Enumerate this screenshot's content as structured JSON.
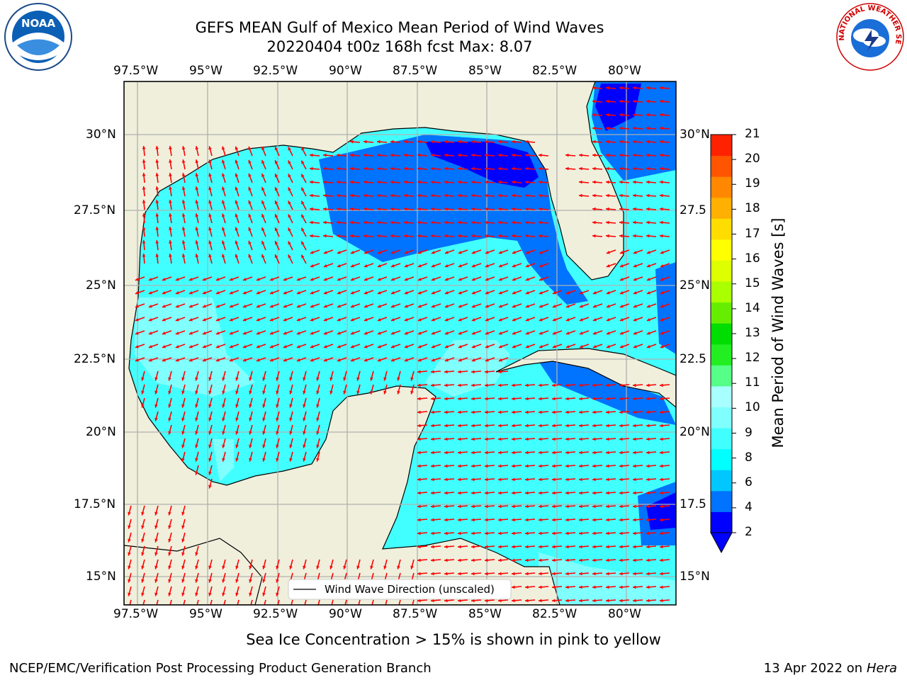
{
  "header": {
    "title_line1": "GEFS MEAN Gulf of Mexico Mean Period of Wind Waves",
    "title_line2": "20220404 t00z 168h fcst   Max: 8.07"
  },
  "logos": {
    "noaa_text": "NOAA",
    "nws_text": "NATIONAL WEATHER SERVICE"
  },
  "axes": {
    "lon_labels": [
      "97.5°W",
      "95°W",
      "92.5°W",
      "90°W",
      "87.5°W",
      "85°W",
      "82.5°W",
      "80°W"
    ],
    "lat_labels": [
      "30°N",
      "27.5°N",
      "25°N",
      "22.5°N",
      "20°N",
      "17.5°N",
      "15°N"
    ],
    "lat_labels_right": [
      "30°N",
      "27.5",
      "25°N",
      "22.5",
      "20°N",
      "17.5",
      "15°N"
    ]
  },
  "legend": {
    "label": "Wind Wave Direction (unscaled)"
  },
  "colorbar": {
    "label": "Mean Period of Wind Waves [s]",
    "tick_labels": [
      "2",
      "4",
      "6",
      "8",
      "9",
      "10",
      "11",
      "12",
      "13",
      "14",
      "15",
      "16",
      "17",
      "18",
      "19",
      "20",
      "21"
    ],
    "levels": [
      2,
      3,
      4,
      5,
      6,
      7,
      8,
      9,
      10,
      11,
      12,
      13,
      14,
      15,
      16,
      17,
      18,
      19,
      20,
      21
    ],
    "colors": [
      "#0000ff",
      "#0073ff",
      "#00c8ff",
      "#00ffff",
      "#42ffff",
      "#80ffff",
      "#a8ffff",
      "#55ff88",
      "#22ee22",
      "#00dd00",
      "#66ee00",
      "#aaff00",
      "#ddff00",
      "#ffff00",
      "#ffdd00",
      "#ffb000",
      "#ff8800",
      "#ff5500",
      "#ff2200",
      "#ff0000"
    ]
  },
  "colors": {
    "land": "#efefdc",
    "arrow": "#ff0000",
    "grid": "#b0b0b0",
    "coast": "#000000"
  },
  "footer": {
    "ice_note": "Sea Ice Concentration > 15% is shown in pink to yellow",
    "producer": "NCEP/EMC/Verification Post Processing Product Generation Branch",
    "date": "13 Apr 2022 on",
    "machine": "Hera"
  }
}
